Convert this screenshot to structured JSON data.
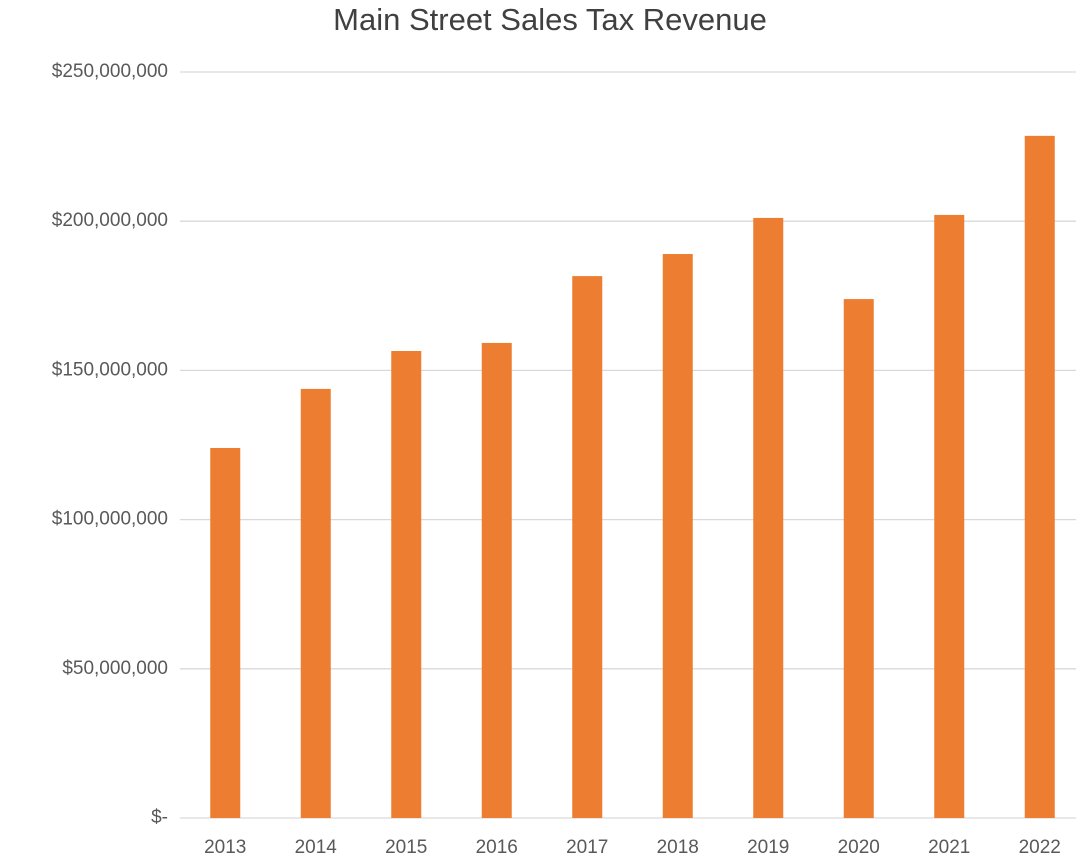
{
  "chart_data": {
    "type": "bar",
    "title": "Main Street Sales Tax Revenue",
    "categories": [
      "2013",
      "2014",
      "2015",
      "2016",
      "2017",
      "2018",
      "2019",
      "2020",
      "2021",
      "2022"
    ],
    "values": [
      124000000,
      143800000,
      156500000,
      159200000,
      181600000,
      189000000,
      201100000,
      173900000,
      202100000,
      228600000
    ],
    "color": "#ed7d31",
    "ylim": [
      0,
      250000000
    ],
    "yticks": [
      {
        "value": 0,
        "label": "$-"
      },
      {
        "value": 50000000,
        "label": "$50,000,000"
      },
      {
        "value": 100000000,
        "label": "$100,000,000"
      },
      {
        "value": 150000000,
        "label": "$150,000,000"
      },
      {
        "value": 200000000,
        "label": "$200,000,000"
      },
      {
        "value": 250000000,
        "label": "$250,000,000"
      }
    ],
    "grid": true
  }
}
